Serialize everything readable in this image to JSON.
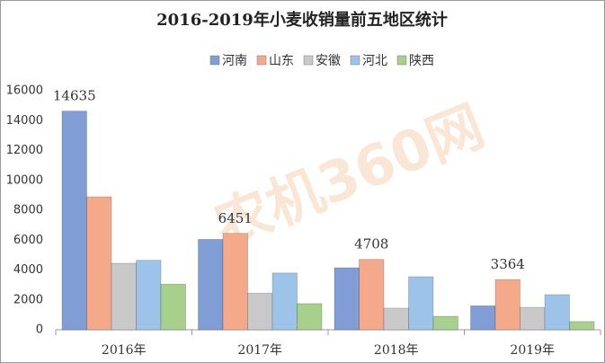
{
  "chart_data": {
    "type": "bar",
    "title": "2016-2019年小麦收销量前五地区统计",
    "watermark": "农机360网",
    "categories": [
      "2016年",
      "2017年",
      "2018年",
      "2019年"
    ],
    "series": [
      {
        "name": "河南",
        "color": "#809dd6",
        "values": [
          14635,
          6050,
          4150,
          1600
        ]
      },
      {
        "name": "山东",
        "color": "#f4a98a",
        "values": [
          8900,
          6451,
          4708,
          3364
        ]
      },
      {
        "name": "安徽",
        "color": "#c9c9c9",
        "values": [
          4450,
          2450,
          1450,
          1500
        ]
      },
      {
        "name": "河北",
        "color": "#9ec3e8",
        "values": [
          4650,
          3800,
          3550,
          2350
        ]
      },
      {
        "name": "陕西",
        "color": "#a6d08c",
        "values": [
          3050,
          1750,
          900,
          550
        ]
      }
    ],
    "ylim": [
      0,
      16000
    ],
    "yticks": [
      0,
      2000,
      4000,
      6000,
      8000,
      10000,
      12000,
      14000,
      16000
    ],
    "grid": false,
    "legend": "top"
  }
}
